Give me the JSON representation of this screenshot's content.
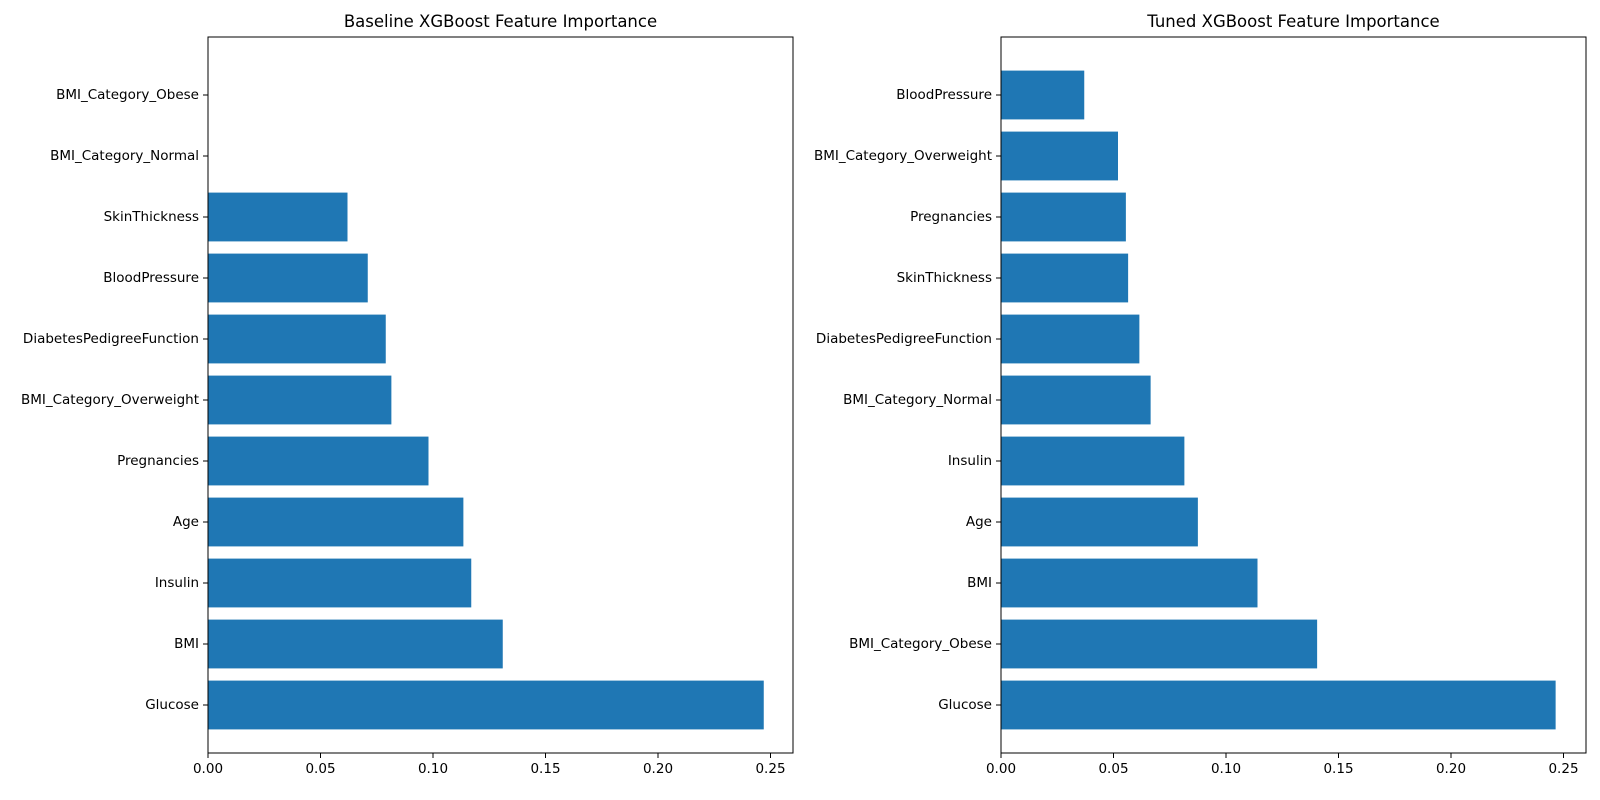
{
  "chart_data": [
    {
      "type": "bar",
      "orientation": "horizontal",
      "title": "Baseline XGBoost Feature Importance",
      "xlabel": "",
      "ylabel": "",
      "xlim": [
        0,
        0.26
      ],
      "xticks": [
        "0.00",
        "0.05",
        "0.10",
        "0.15",
        "0.20",
        "0.25"
      ],
      "grid": false,
      "color": "#1f77b4",
      "categories": [
        "Glucose",
        "BMI",
        "Insulin",
        "Age",
        "Pregnancies",
        "BMI_Category_Overweight",
        "DiabetesPedigreeFunction",
        "BloodPressure",
        "SkinThickness",
        "BMI_Category_Normal",
        "BMI_Category_Obese"
      ],
      "values": [
        0.247,
        0.131,
        0.117,
        0.1135,
        0.098,
        0.0815,
        0.079,
        0.071,
        0.062,
        0.0,
        0.0
      ]
    },
    {
      "type": "bar",
      "orientation": "horizontal",
      "title": "Tuned XGBoost Feature Importance",
      "xlabel": "",
      "ylabel": "",
      "xlim": [
        0,
        0.26
      ],
      "xticks": [
        "0.00",
        "0.05",
        "0.10",
        "0.15",
        "0.20",
        "0.25"
      ],
      "grid": false,
      "color": "#1f77b4",
      "categories": [
        "Glucose",
        "BMI_Category_Obese",
        "BMI",
        "Age",
        "Insulin",
        "BMI_Category_Normal",
        "DiabetesPedigreeFunction",
        "SkinThickness",
        "Pregnancies",
        "BMI_Category_Overweight",
        "BloodPressure"
      ],
      "values": [
        0.2465,
        0.1405,
        0.114,
        0.0875,
        0.0815,
        0.0665,
        0.0615,
        0.0565,
        0.0555,
        0.052,
        0.037
      ]
    }
  ]
}
